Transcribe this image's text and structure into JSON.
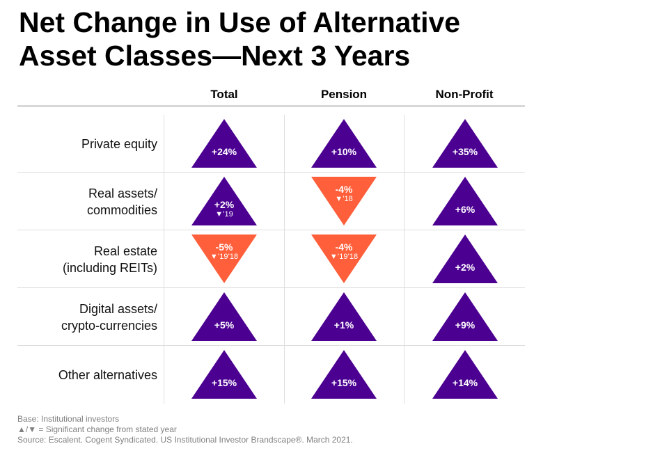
{
  "title_lines": [
    "Net Change in Use of Alternative",
    "Asset Classes—Next 3 Years"
  ],
  "columns": [
    "Total",
    "Pension",
    "Non-Profit"
  ],
  "colors": {
    "increase": "#4b0092",
    "decrease": "#ff5f3a"
  },
  "rows": [
    {
      "label_lines": [
        "Private equity"
      ],
      "cells": [
        {
          "label": "+24%",
          "sig": "",
          "value": 24
        },
        {
          "label": "+10%",
          "sig": "",
          "value": 10
        },
        {
          "label": "+35%",
          "sig": "",
          "value": 35
        }
      ]
    },
    {
      "label_lines": [
        "Real assets/",
        "commodities"
      ],
      "cells": [
        {
          "label": "+2%",
          "sig": "▼’19",
          "value": 2
        },
        {
          "label": "-4%",
          "sig": "▼’18",
          "value": -4
        },
        {
          "label": "+6%",
          "sig": "",
          "value": 6
        }
      ]
    },
    {
      "label_lines": [
        "Real estate",
        "(including REITs)"
      ],
      "cells": [
        {
          "label": "-5%",
          "sig": "▼’19’18",
          "value": -5
        },
        {
          "label": "-4%",
          "sig": "▼’19’18",
          "value": -4
        },
        {
          "label": "+2%",
          "sig": "",
          "value": 2
        }
      ]
    },
    {
      "label_lines": [
        "Digital assets/",
        "crypto-currencies"
      ],
      "cells": [
        {
          "label": "+5%",
          "sig": "",
          "value": 5
        },
        {
          "label": "+1%",
          "sig": "",
          "value": 1
        },
        {
          "label": "+9%",
          "sig": "",
          "value": 9
        }
      ]
    },
    {
      "label_lines": [
        "Other alternatives"
      ],
      "cells": [
        {
          "label": "+15%",
          "sig": "",
          "value": 15
        },
        {
          "label": "+15%",
          "sig": "",
          "value": 15
        },
        {
          "label": "+14%",
          "sig": "",
          "value": 14
        }
      ]
    }
  ],
  "footer": [
    "Base: Institutional investors",
    "▲/▼ = Significant change from stated year",
    "Source: Escalent. Cogent Syndicated. US Institutional Investor Brandscape®. March 2021."
  ],
  "chart_data": {
    "type": "table",
    "title": "Net Change in Use of Alternative Asset Classes—Next 3 Years",
    "columns": [
      "Total",
      "Pension",
      "Non-Profit"
    ],
    "categories": [
      "Private equity",
      "Real assets/ commodities",
      "Real estate (including REITs)",
      "Digital assets/ crypto-currencies",
      "Other alternatives"
    ],
    "series": [
      {
        "name": "Total",
        "values": [
          24,
          2,
          -5,
          5,
          15
        ]
      },
      {
        "name": "Pension",
        "values": [
          10,
          -4,
          -4,
          1,
          15
        ]
      },
      {
        "name": "Non-Profit",
        "values": [
          35,
          6,
          2,
          9,
          14
        ]
      }
    ]
  }
}
